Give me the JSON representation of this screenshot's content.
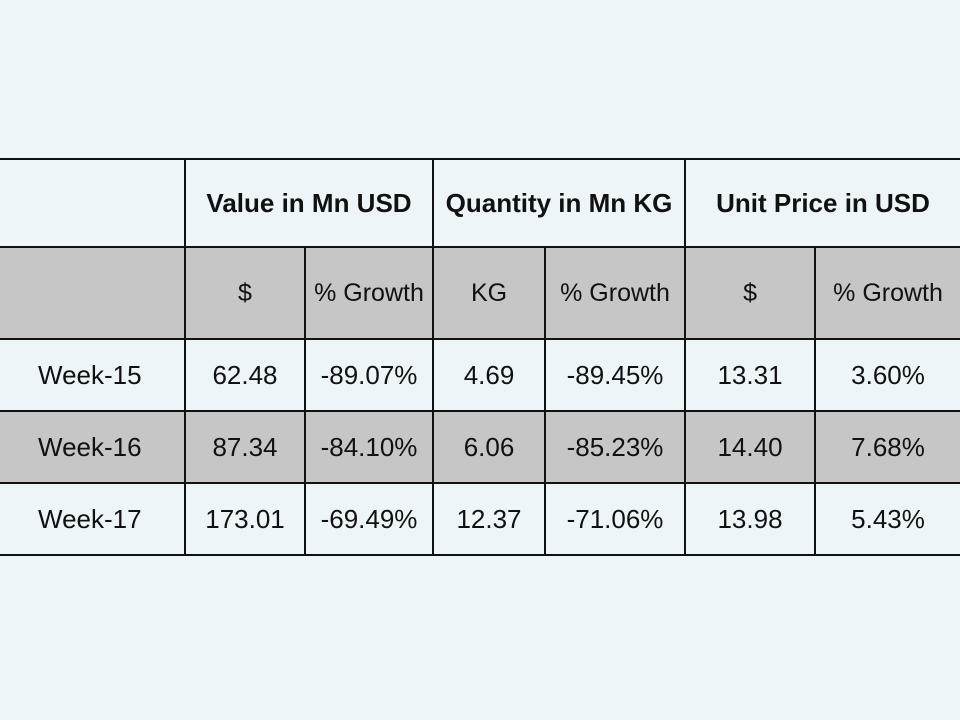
{
  "table": {
    "group_headers": [
      "",
      "Value in Mn USD",
      "Quantity in Mn KG",
      "Unit Price in USD"
    ],
    "sub_headers": [
      "",
      "$",
      "% Growth",
      "KG",
      "% Growth",
      "$",
      "% Growth"
    ],
    "rows": [
      {
        "label": "Week-15",
        "cells": [
          "62.48",
          "-89.07%",
          "4.69",
          "-89.45%",
          "13.31",
          "3.60%"
        ]
      },
      {
        "label": "Week-16",
        "cells": [
          "87.34",
          "-84.10%",
          "6.06",
          "-85.23%",
          "14.40",
          "7.68%"
        ]
      },
      {
        "label": "Week-17",
        "cells": [
          "173.01",
          "-69.49%",
          "12.37",
          "-71.06%",
          "13.98",
          "5.43%"
        ]
      }
    ]
  },
  "colors": {
    "background": "#edf5f9",
    "shaded_row": "#c6c6c6",
    "border": "#111111"
  }
}
